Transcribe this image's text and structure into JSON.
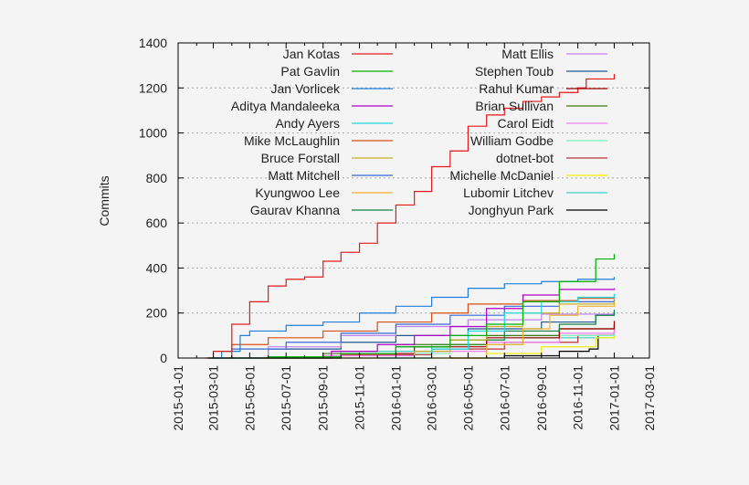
{
  "chart_data": {
    "type": "line",
    "title": "",
    "xlabel": "",
    "ylabel": "Commits",
    "ylim": [
      0,
      1400
    ],
    "xlim": [
      "2015-01-01",
      "2017-03-01"
    ],
    "yticks": [
      0,
      200,
      400,
      600,
      800,
      1000,
      1200,
      1400
    ],
    "xticks": [
      "2015-01-01",
      "2015-03-01",
      "2015-05-01",
      "2015-07-01",
      "2015-09-01",
      "2015-11-01",
      "2016-01-01",
      "2016-03-01",
      "2016-05-01",
      "2016-07-01",
      "2016-09-01",
      "2016-11-01",
      "2017-01-01",
      "2017-03-01"
    ],
    "grid": "horizontal dashed",
    "legend": "top, two columns",
    "series": [
      {
        "name": "Jan Kotas",
        "color": "#e31a1c",
        "points": [
          [
            "2015-02-15",
            0
          ],
          [
            "2015-03-01",
            30
          ],
          [
            "2015-04-01",
            150
          ],
          [
            "2015-05-01",
            250
          ],
          [
            "2015-06-01",
            320
          ],
          [
            "2015-07-01",
            350
          ],
          [
            "2015-08-01",
            360
          ],
          [
            "2015-09-01",
            430
          ],
          [
            "2015-10-01",
            470
          ],
          [
            "2015-11-01",
            510
          ],
          [
            "2015-12-01",
            600
          ],
          [
            "2016-01-01",
            680
          ],
          [
            "2016-02-01",
            740
          ],
          [
            "2016-03-01",
            850
          ],
          [
            "2016-04-01",
            920
          ],
          [
            "2016-05-01",
            1030
          ],
          [
            "2016-06-01",
            1080
          ],
          [
            "2016-07-01",
            1110
          ],
          [
            "2016-08-01",
            1140
          ],
          [
            "2016-09-01",
            1160
          ],
          [
            "2016-10-01",
            1180
          ],
          [
            "2016-11-01",
            1200
          ],
          [
            "2016-11-15",
            1240
          ],
          [
            "2017-01-01",
            1262
          ]
        ]
      },
      {
        "name": "Pat Gavlin",
        "color": "#00b000",
        "points": [
          [
            "2015-02-20",
            0
          ],
          [
            "2015-06-01",
            5
          ],
          [
            "2015-10-01",
            20
          ],
          [
            "2016-01-01",
            50
          ],
          [
            "2016-04-01",
            100
          ],
          [
            "2016-06-01",
            150
          ],
          [
            "2016-08-01",
            250
          ],
          [
            "2016-10-01",
            340
          ],
          [
            "2016-12-01",
            440
          ],
          [
            "2017-01-01",
            462
          ]
        ]
      },
      {
        "name": "Jan Vorlicek",
        "color": "#1e7fdc",
        "points": [
          [
            "2015-02-20",
            0
          ],
          [
            "2015-03-15",
            30
          ],
          [
            "2015-04-15",
            100
          ],
          [
            "2015-05-01",
            120
          ],
          [
            "2015-07-01",
            145
          ],
          [
            "2015-09-01",
            160
          ],
          [
            "2015-11-01",
            200
          ],
          [
            "2016-01-01",
            230
          ],
          [
            "2016-03-01",
            270
          ],
          [
            "2016-05-01",
            310
          ],
          [
            "2016-07-01",
            330
          ],
          [
            "2016-09-01",
            340
          ],
          [
            "2016-11-01",
            350
          ],
          [
            "2017-01-01",
            360
          ]
        ]
      },
      {
        "name": "Aditya Mandaleeka",
        "color": "#b000c8",
        "points": [
          [
            "2015-09-01",
            0
          ],
          [
            "2015-09-15",
            30
          ],
          [
            "2015-12-01",
            60
          ],
          [
            "2016-02-01",
            100
          ],
          [
            "2016-04-01",
            140
          ],
          [
            "2016-06-01",
            220
          ],
          [
            "2016-08-01",
            280
          ],
          [
            "2016-10-01",
            305
          ],
          [
            "2017-01-01",
            310
          ]
        ]
      },
      {
        "name": "Andy Ayers",
        "color": "#20d8e0",
        "points": [
          [
            "2015-12-01",
            0
          ],
          [
            "2016-03-01",
            40
          ],
          [
            "2016-05-01",
            120
          ],
          [
            "2016-07-01",
            200
          ],
          [
            "2016-09-01",
            250
          ],
          [
            "2016-11-01",
            270
          ],
          [
            "2017-01-01",
            285
          ]
        ]
      },
      {
        "name": "Mike McLaughlin",
        "color": "#d85018",
        "points": [
          [
            "2015-02-20",
            0
          ],
          [
            "2015-04-01",
            60
          ],
          [
            "2015-06-01",
            90
          ],
          [
            "2015-09-01",
            120
          ],
          [
            "2015-12-01",
            160
          ],
          [
            "2016-03-01",
            200
          ],
          [
            "2016-05-01",
            240
          ],
          [
            "2016-08-01",
            255
          ],
          [
            "2016-11-01",
            265
          ],
          [
            "2017-01-01",
            270
          ]
        ]
      },
      {
        "name": "Bruce Forstall",
        "color": "#c8b020",
        "points": [
          [
            "2015-10-01",
            0
          ],
          [
            "2016-02-01",
            30
          ],
          [
            "2016-04-01",
            80
          ],
          [
            "2016-06-01",
            140
          ],
          [
            "2016-08-01",
            200
          ],
          [
            "2016-10-01",
            240
          ],
          [
            "2017-01-01",
            255
          ]
        ]
      },
      {
        "name": "Matt Mitchell",
        "color": "#3868d8",
        "points": [
          [
            "2015-02-20",
            0
          ],
          [
            "2015-04-01",
            40
          ],
          [
            "2015-07-01",
            70
          ],
          [
            "2015-10-01",
            110
          ],
          [
            "2016-01-01",
            150
          ],
          [
            "2016-04-01",
            190
          ],
          [
            "2016-07-01",
            230
          ],
          [
            "2016-10-01",
            250
          ],
          [
            "2017-01-01",
            260
          ]
        ]
      },
      {
        "name": "Kyungwoo Lee",
        "color": "#f0b030",
        "points": [
          [
            "2016-04-01",
            0
          ],
          [
            "2016-06-01",
            60
          ],
          [
            "2016-08-01",
            130
          ],
          [
            "2016-09-15",
            190
          ],
          [
            "2016-11-01",
            230
          ],
          [
            "2017-01-01",
            250
          ]
        ]
      },
      {
        "name": "Gaurav Khanna",
        "color": "#108040",
        "points": [
          [
            "2015-06-01",
            0
          ],
          [
            "2015-10-01",
            20
          ],
          [
            "2016-01-01",
            50
          ],
          [
            "2016-04-01",
            80
          ],
          [
            "2016-07-01",
            120
          ],
          [
            "2016-10-01",
            150
          ],
          [
            "2016-12-01",
            190
          ],
          [
            "2017-01-01",
            215
          ]
        ]
      },
      {
        "name": "Matt Ellis",
        "color": "#c080f0",
        "points": [
          [
            "2015-03-01",
            0
          ],
          [
            "2015-06-01",
            50
          ],
          [
            "2015-10-01",
            100
          ],
          [
            "2016-01-01",
            140
          ],
          [
            "2016-05-01",
            170
          ],
          [
            "2016-09-01",
            195
          ],
          [
            "2017-01-01",
            210
          ]
        ]
      },
      {
        "name": "Stephen Toub",
        "color": "#205890",
        "points": [
          [
            "2015-03-01",
            0
          ],
          [
            "2015-06-01",
            40
          ],
          [
            "2015-10-01",
            70
          ],
          [
            "2016-01-01",
            100
          ],
          [
            "2016-05-01",
            130
          ],
          [
            "2016-09-01",
            160
          ],
          [
            "2016-12-01",
            190
          ],
          [
            "2017-01-01",
            200
          ]
        ]
      },
      {
        "name": "Rahul Kumar",
        "color": "#9a0000",
        "points": [
          [
            "2015-05-01",
            0
          ],
          [
            "2015-10-01",
            20
          ],
          [
            "2016-02-01",
            50
          ],
          [
            "2016-06-01",
            90
          ],
          [
            "2016-10-01",
            130
          ],
          [
            "2017-01-01",
            165
          ]
        ]
      },
      {
        "name": "Brian Sullivan",
        "color": "#3c7a10",
        "points": [
          [
            "2015-04-01",
            0
          ],
          [
            "2015-09-01",
            20
          ],
          [
            "2016-01-01",
            60
          ],
          [
            "2016-06-01",
            100
          ],
          [
            "2016-10-01",
            130
          ],
          [
            "2017-01-01",
            150
          ]
        ]
      },
      {
        "name": "Carol Eidt",
        "color": "#f080f0",
        "points": [
          [
            "2015-03-01",
            0
          ],
          [
            "2015-09-01",
            10
          ],
          [
            "2016-02-01",
            30
          ],
          [
            "2016-06-01",
            70
          ],
          [
            "2016-10-01",
            110
          ],
          [
            "2017-01-01",
            140
          ]
        ]
      },
      {
        "name": "William Godbe",
        "color": "#80f0c0",
        "points": [
          [
            "2015-06-01",
            0
          ],
          [
            "2016-01-01",
            20
          ],
          [
            "2016-04-01",
            60
          ],
          [
            "2016-08-01",
            100
          ],
          [
            "2017-01-01",
            130
          ]
        ]
      },
      {
        "name": "dotnet-bot",
        "color": "#b83838",
        "points": [
          [
            "2015-03-01",
            0
          ],
          [
            "2015-10-01",
            15
          ],
          [
            "2016-03-01",
            40
          ],
          [
            "2016-07-01",
            70
          ],
          [
            "2016-11-01",
            100
          ],
          [
            "2017-01-01",
            110
          ]
        ]
      },
      {
        "name": "Michelle McDaniel",
        "color": "#f0f000",
        "points": [
          [
            "2016-02-01",
            0
          ],
          [
            "2016-06-01",
            20
          ],
          [
            "2016-09-01",
            50
          ],
          [
            "2016-12-01",
            90
          ],
          [
            "2017-01-01",
            105
          ]
        ]
      },
      {
        "name": "Lubomir Litchev",
        "color": "#40d0c0",
        "points": [
          [
            "2015-04-01",
            0
          ],
          [
            "2015-10-01",
            30
          ],
          [
            "2016-03-01",
            60
          ],
          [
            "2016-08-01",
            90
          ],
          [
            "2017-01-01",
            110
          ]
        ]
      },
      {
        "name": "Jonghyun Park",
        "color": "#000000",
        "points": [
          [
            "2016-04-01",
            0
          ],
          [
            "2016-07-01",
            10
          ],
          [
            "2016-10-01",
            30
          ],
          [
            "2016-11-20",
            40
          ],
          [
            "2016-12-05",
            100
          ],
          [
            "2017-01-01",
            115
          ]
        ]
      }
    ]
  }
}
